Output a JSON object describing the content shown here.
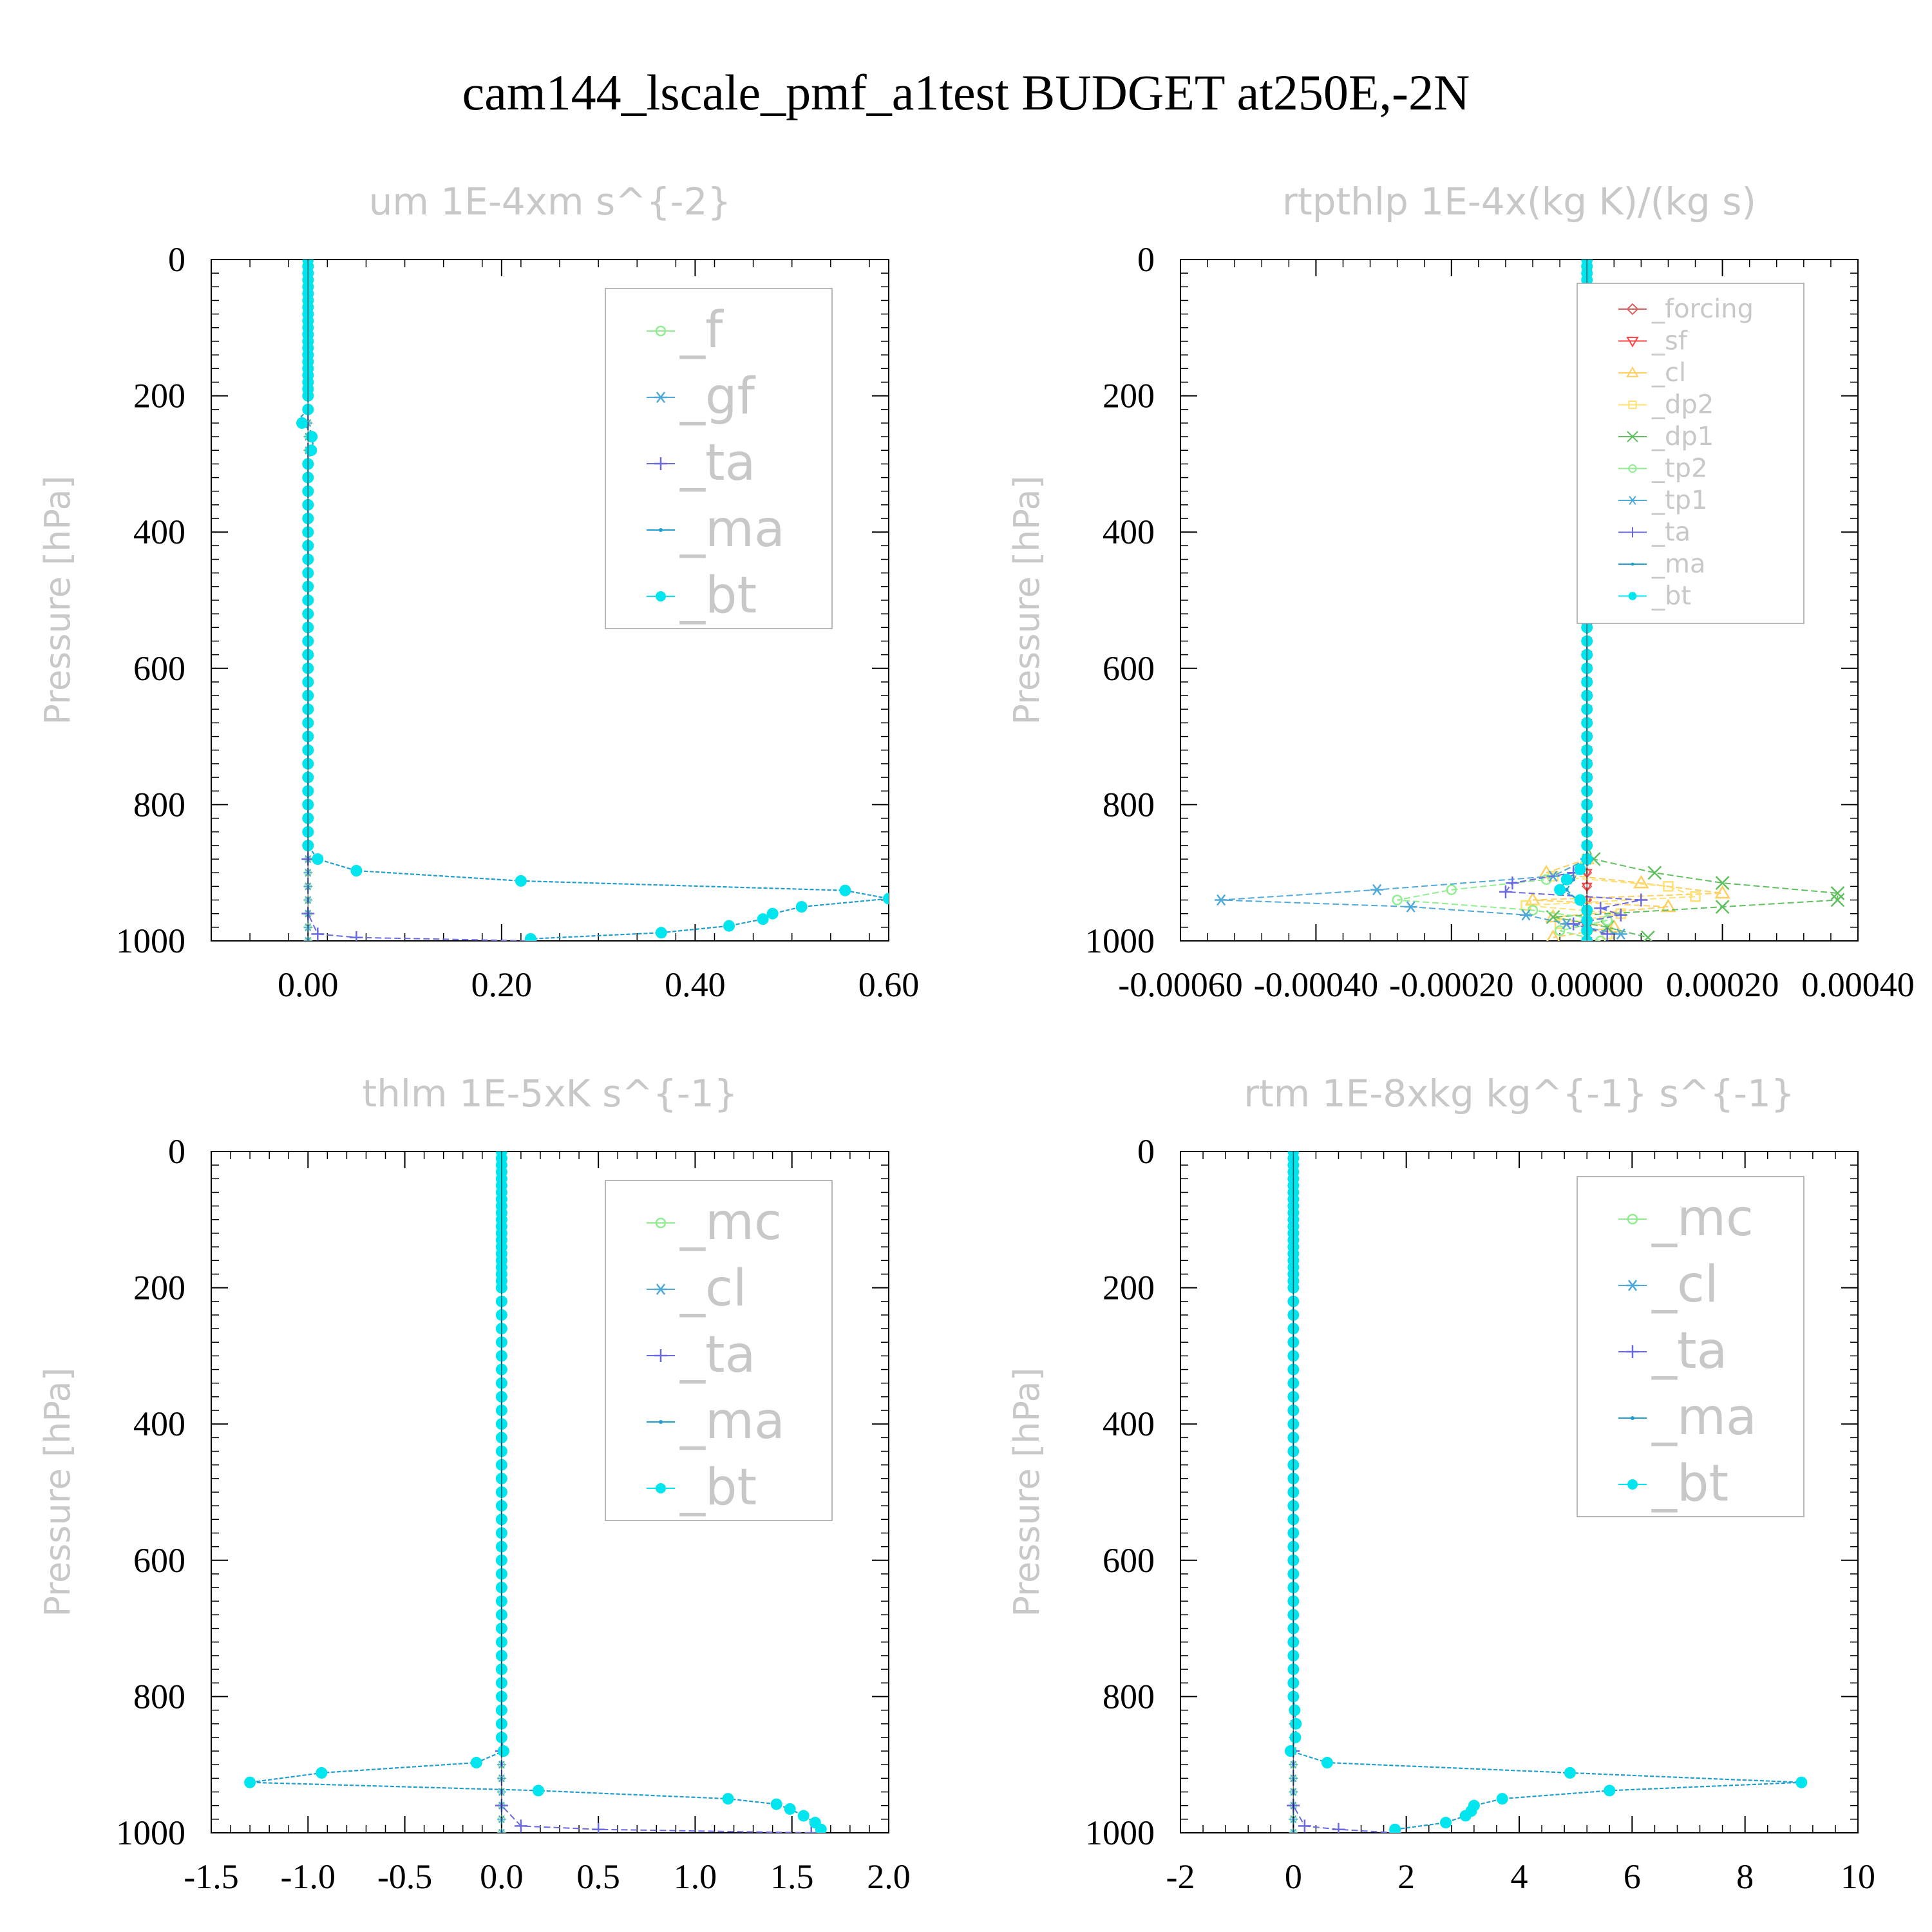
{
  "figure": {
    "title": "cam144_lscale_pmf_a1test  BUDGET at250E,-2N"
  },
  "colors": {
    "f": "#90ee90",
    "gf": "#4fa9d8",
    "ta": "#6a6ae0",
    "ma": "#1f9fd1",
    "bt": "#00e5ee",
    "mc": "#90ee90",
    "cl_blue": "#4fa9d8",
    "forcing": "#e06060",
    "sf": "#ff4040",
    "cl": "#ffd060",
    "dp2": "#ffe070",
    "dp1": "#60c060",
    "tp2": "#90ee90",
    "tp1": "#4fa9d8"
  },
  "chart_data": [
    {
      "type": "line",
      "title": "um  1E-4xm s^{-2}",
      "ylabel": "Pressure [hPa]",
      "xlim": [
        -0.1,
        0.6
      ],
      "ylim": [
        1000,
        0
      ],
      "xticks": [
        0.0,
        0.2,
        0.4,
        0.6
      ],
      "xtick_labels": [
        "0.00",
        "0.20",
        "0.40",
        "0.60"
      ],
      "yticks": [
        0,
        200,
        400,
        600,
        800,
        1000
      ],
      "ytick_labels": [
        "0",
        "200",
        "400",
        "600",
        "800",
        "1000"
      ],
      "grid": false,
      "legend_position": "top-right",
      "series": [
        {
          "name": "_f",
          "color_key": "f",
          "marker": "circle-open",
          "pressure": [
            0,
            1000
          ],
          "values": [
            0,
            0
          ]
        },
        {
          "name": "_gf",
          "color_key": "gf",
          "marker": "star",
          "pressure": [
            0,
            1000
          ],
          "values": [
            0,
            0
          ]
        },
        {
          "name": "_ta",
          "color_key": "ta",
          "marker": "plus",
          "pressure": [
            0,
            880,
            960,
            990,
            995,
            1000
          ],
          "values": [
            0,
            0,
            0,
            0.01,
            0.05,
            0.23
          ]
        },
        {
          "name": "_ma",
          "color_key": "ma",
          "marker": "dot",
          "pressure": [
            0,
            20,
            60,
            100,
            140,
            180,
            220,
            235,
            252,
            270,
            300,
            400,
            500,
            600,
            700,
            800,
            860,
            880,
            897,
            912,
            926,
            938,
            950,
            960,
            968,
            978,
            988,
            997
          ],
          "values": [
            0,
            0,
            0,
            0,
            0,
            0,
            0,
            -0.01,
            0.003,
            0.005,
            0,
            0,
            0,
            0,
            0,
            0,
            0,
            0.01,
            0.05,
            0.22,
            0.555,
            0.6,
            0.51,
            0.48,
            0.47,
            0.435,
            0.365,
            0.23
          ]
        },
        {
          "name": "_bt",
          "color_key": "bt",
          "marker": "dot-filled",
          "pressure": [
            0,
            20,
            60,
            100,
            140,
            180,
            220,
            235,
            252,
            270,
            300,
            400,
            500,
            600,
            700,
            800,
            860,
            880,
            897,
            912,
            926,
            938,
            950,
            960,
            968,
            978,
            988,
            997
          ],
          "values": [
            0,
            0,
            0,
            0,
            0,
            0,
            0,
            -0.01,
            0.003,
            0.005,
            0,
            0,
            0,
            0,
            0,
            0,
            0,
            0.01,
            0.05,
            0.22,
            0.555,
            0.6,
            0.51,
            0.48,
            0.47,
            0.435,
            0.365,
            0.23
          ]
        }
      ]
    },
    {
      "type": "line",
      "title": "rtpthlp  1E-4x(kg K)/(kg s)",
      "ylabel": "Pressure [hPa]",
      "xlim": [
        -0.0006,
        0.0004
      ],
      "ylim": [
        1000,
        0
      ],
      "xticks": [
        -0.0006,
        -0.0004,
        -0.0002,
        0.0,
        0.0002,
        0.0004
      ],
      "xtick_labels": [
        "-0.00060",
        "-0.00040",
        "-0.00020",
        "0.00000",
        "0.00020",
        "0.00040"
      ],
      "yticks": [
        0,
        200,
        400,
        600,
        800,
        1000
      ],
      "ytick_labels": [
        "0",
        "200",
        "400",
        "600",
        "800",
        "1000"
      ],
      "grid": false,
      "legend_position": "top-right",
      "series": [
        {
          "name": "_forcing",
          "color_key": "forcing",
          "marker": "diamond-open",
          "pressure": [
            0,
            1000
          ],
          "values": [
            0,
            0
          ]
        },
        {
          "name": "_sf",
          "color_key": "sf",
          "marker": "triangle-down",
          "pressure": [
            0,
            1000
          ],
          "values": [
            0,
            0
          ]
        },
        {
          "name": "_cl",
          "color_key": "cl",
          "marker": "triangle-up",
          "pressure": [
            0,
            880,
            900,
            915,
            930,
            940,
            950,
            965,
            980,
            995
          ],
          "values": [
            0,
            0,
            -6e-05,
            8e-05,
            0.0002,
            -8e-05,
            0.00012,
            -5e-05,
            4e-05,
            -5e-05
          ]
        },
        {
          "name": "_dp2",
          "color_key": "dp2",
          "marker": "square-open",
          "pressure": [
            0,
            880,
            905,
            920,
            935,
            948,
            960,
            975,
            990
          ],
          "values": [
            0,
            0,
            -5e-05,
            0.00012,
            0.00016,
            -9e-05,
            5e-05,
            -4e-05,
            3e-05
          ]
        },
        {
          "name": "_dp1",
          "color_key": "dp1",
          "marker": "x",
          "pressure": [
            0,
            860,
            880,
            900,
            915,
            930,
            940,
            950,
            965,
            980,
            995
          ],
          "values": [
            0,
            0,
            1e-05,
            0.0001,
            0.0002,
            0.00037,
            0.00037,
            0.0002,
            -5e-05,
            3e-05,
            9e-05
          ]
        },
        {
          "name": "_tp2",
          "color_key": "tp2",
          "marker": "circle-open",
          "pressure": [
            0,
            880,
            910,
            925,
            940,
            955,
            970,
            985,
            1000
          ],
          "values": [
            0,
            0,
            -6e-05,
            -0.0002,
            -0.00028,
            -8e-05,
            3e-05,
            -4e-05,
            2e-05
          ]
        },
        {
          "name": "_tp1",
          "color_key": "tp1",
          "marker": "star",
          "pressure": [
            0,
            880,
            905,
            925,
            940,
            950,
            962,
            975,
            990
          ],
          "values": [
            0,
            0,
            -5e-05,
            -0.00031,
            -0.00054,
            -0.00026,
            -9e-05,
            -3e-05,
            5e-05
          ]
        },
        {
          "name": "_ta",
          "color_key": "ta",
          "marker": "plus",
          "pressure": [
            0,
            880,
            900,
            915,
            928,
            940,
            952,
            962,
            975,
            990
          ],
          "values": [
            0,
            0,
            -2e-05,
            -0.00011,
            -0.00012,
            8e-05,
            2e-05,
            5e-05,
            -2e-05,
            3e-05
          ]
        },
        {
          "name": "_ma",
          "color_key": "ma",
          "marker": "dot",
          "pressure": [
            0,
            880,
            910,
            925,
            945,
            960,
            1000
          ],
          "values": [
            0,
            0,
            -2e-05,
            -3e-05,
            -1e-05,
            0,
            0
          ]
        },
        {
          "name": "_bt",
          "color_key": "bt",
          "marker": "dot-filled",
          "pressure": [
            0,
            20,
            60,
            100,
            140,
            180,
            220,
            260,
            300,
            400,
            500,
            600,
            700,
            800,
            860,
            880,
            895,
            910,
            925,
            940,
            955,
            970,
            985,
            1000
          ],
          "values": [
            0,
            0,
            0,
            0,
            0,
            0,
            0,
            0,
            0,
            0,
            0,
            0,
            0,
            0,
            0,
            0,
            -1e-05,
            -3e-05,
            -4e-05,
            -1e-05,
            0,
            0,
            0,
            0
          ]
        }
      ]
    },
    {
      "type": "line",
      "title": "thlm  1E-5xK s^{-1}",
      "ylabel": "Pressure [hPa]",
      "xlim": [
        -1.5,
        2.0
      ],
      "ylim": [
        1000,
        0
      ],
      "xticks": [
        -1.5,
        -1.0,
        -0.5,
        0.0,
        0.5,
        1.0,
        1.5,
        2.0
      ],
      "xtick_labels": [
        "-1.5",
        "-1.0",
        "-0.5",
        "0.0",
        "0.5",
        "1.0",
        "1.5",
        "2.0"
      ],
      "yticks": [
        0,
        200,
        400,
        600,
        800,
        1000
      ],
      "ytick_labels": [
        "0",
        "200",
        "400",
        "600",
        "800",
        "1000"
      ],
      "grid": false,
      "legend_position": "top-right",
      "series": [
        {
          "name": "_mc",
          "color_key": "mc",
          "marker": "circle-open",
          "pressure": [
            0,
            1000
          ],
          "values": [
            0,
            0
          ]
        },
        {
          "name": "_cl",
          "color_key": "cl_blue",
          "marker": "star",
          "pressure": [
            0,
            1000
          ],
          "values": [
            0,
            0
          ]
        },
        {
          "name": "_ta",
          "color_key": "ta",
          "marker": "plus",
          "pressure": [
            0,
            880,
            960,
            990,
            995,
            1000
          ],
          "values": [
            0,
            0,
            0,
            0.1,
            0.5,
            1.6
          ]
        },
        {
          "name": "_ma",
          "color_key": "ma",
          "marker": "dot",
          "pressure": [
            0,
            20,
            60,
            100,
            200,
            300,
            400,
            500,
            600,
            700,
            800,
            860,
            880,
            897,
            912,
            926,
            938,
            950,
            958,
            965,
            975,
            985,
            995
          ],
          "values": [
            0,
            0,
            0,
            0,
            0,
            0,
            0,
            0,
            0,
            0,
            0,
            0,
            0.01,
            -0.13,
            -0.93,
            -1.3,
            0.19,
            1.17,
            1.42,
            1.49,
            1.56,
            1.62,
            1.65
          ]
        },
        {
          "name": "_bt",
          "color_key": "bt",
          "marker": "dot-filled",
          "pressure": [
            0,
            20,
            60,
            100,
            200,
            300,
            400,
            500,
            600,
            700,
            800,
            860,
            880,
            897,
            912,
            926,
            938,
            950,
            958,
            965,
            975,
            985,
            995
          ],
          "values": [
            0,
            0,
            0,
            0,
            0,
            0,
            0,
            0,
            0,
            0,
            0,
            0,
            0.01,
            -0.13,
            -0.93,
            -1.3,
            0.19,
            1.17,
            1.42,
            1.49,
            1.56,
            1.62,
            1.65
          ]
        }
      ]
    },
    {
      "type": "line",
      "title": "rtm  1E-8xkg kg^{-1} s^{-1}",
      "ylabel": "Pressure [hPa]",
      "xlim": [
        -2,
        10
      ],
      "ylim": [
        1000,
        0
      ],
      "xticks": [
        -2,
        0,
        2,
        4,
        6,
        8,
        10
      ],
      "xtick_labels": [
        "-2",
        "0",
        "2",
        "4",
        "6",
        "8",
        "10"
      ],
      "yticks": [
        0,
        200,
        400,
        600,
        800,
        1000
      ],
      "ytick_labels": [
        "0",
        "200",
        "400",
        "600",
        "800",
        "1000"
      ],
      "grid": false,
      "legend_position": "top-right",
      "series": [
        {
          "name": "_mc",
          "color_key": "mc",
          "marker": "circle-open",
          "pressure": [
            0,
            1000
          ],
          "values": [
            0,
            0
          ]
        },
        {
          "name": "_cl",
          "color_key": "cl_blue",
          "marker": "star",
          "pressure": [
            0,
            1000
          ],
          "values": [
            0,
            0
          ]
        },
        {
          "name": "_ta",
          "color_key": "ta",
          "marker": "plus",
          "pressure": [
            0,
            880,
            960,
            990,
            995,
            1000
          ],
          "values": [
            0,
            0,
            0,
            0.2,
            0.8,
            1.8
          ]
        },
        {
          "name": "_ma",
          "color_key": "ma",
          "marker": "dot",
          "pressure": [
            0,
            20,
            60,
            100,
            200,
            300,
            400,
            500,
            600,
            700,
            800,
            845,
            865,
            880,
            897,
            912,
            926,
            938,
            950,
            960,
            968,
            975,
            985,
            995
          ],
          "values": [
            0,
            0,
            0,
            0,
            0,
            0,
            0,
            0,
            0,
            0,
            0,
            0.05,
            0.03,
            -0.05,
            0.6,
            4.9,
            9.0,
            5.6,
            3.7,
            3.2,
            3.15,
            3.05,
            2.7,
            1.8
          ]
        },
        {
          "name": "_bt",
          "color_key": "bt",
          "marker": "dot-filled",
          "pressure": [
            0,
            20,
            60,
            100,
            200,
            300,
            400,
            500,
            600,
            700,
            800,
            845,
            865,
            880,
            897,
            912,
            926,
            938,
            950,
            960,
            968,
            975,
            985,
            995
          ],
          "values": [
            0,
            0,
            0,
            0,
            0,
            0,
            0,
            0,
            0,
            0,
            0,
            0.05,
            0.03,
            -0.05,
            0.6,
            4.9,
            9.0,
            5.6,
            3.7,
            3.2,
            3.15,
            3.05,
            2.7,
            1.8
          ]
        }
      ]
    }
  ]
}
